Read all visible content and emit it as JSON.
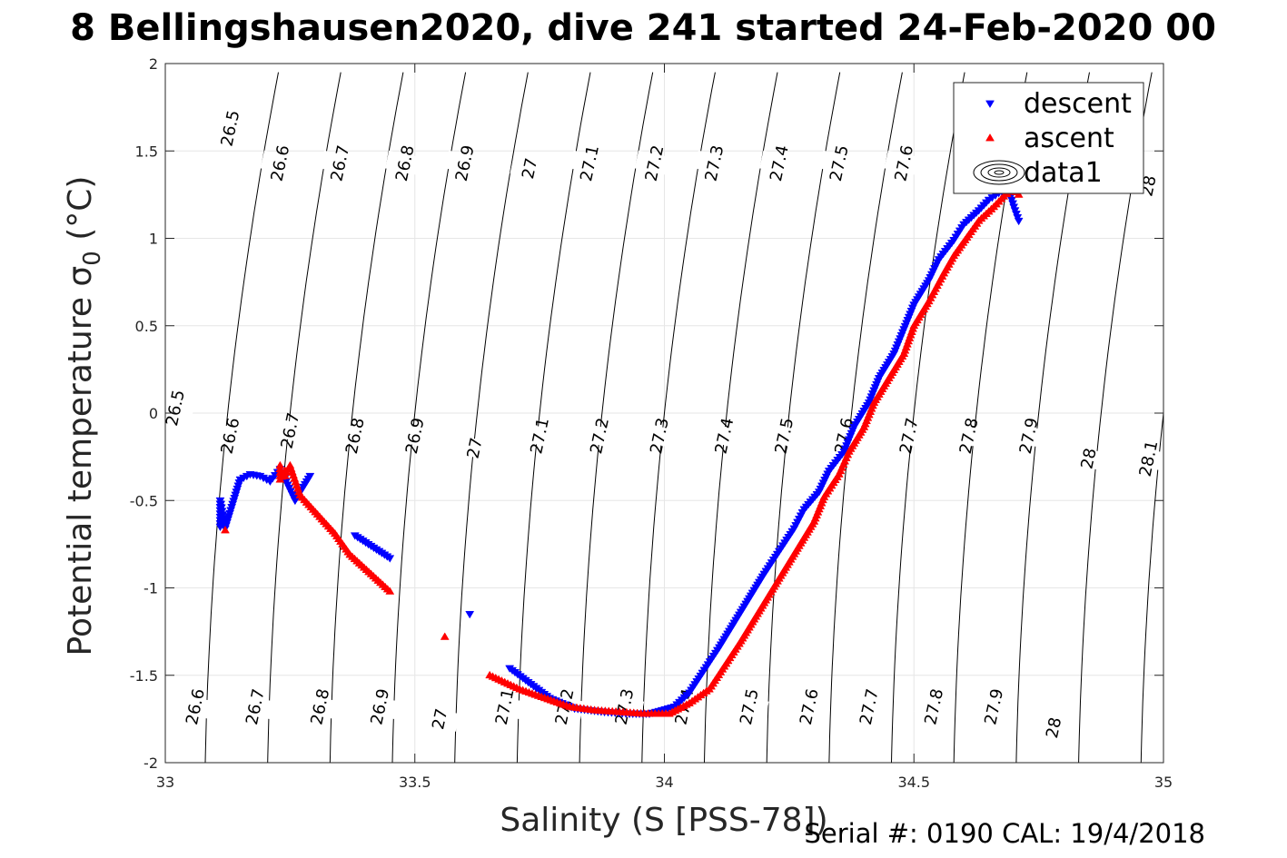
{
  "chart_data": {
    "type": "scatter",
    "title": "8 Bellingshausen2020, dive 241 started 24-Feb-2020 00",
    "xlabel": "Salinity (S [PSS-78])",
    "ylabel": "Potential temperature σ",
    "ylabel_subscript": "0",
    "ylabel_unit": " (°C)",
    "xlim": [
      33,
      35
    ],
    "ylim": [
      -2,
      2
    ],
    "xticks": [
      {
        "value": 33,
        "label": "33"
      },
      {
        "value": 33.5,
        "label": "33.5"
      },
      {
        "value": 34,
        "label": "34"
      },
      {
        "value": 34.5,
        "label": "34.5"
      },
      {
        "value": 35,
        "label": "35"
      }
    ],
    "yticks": [
      {
        "value": -2,
        "label": "-2"
      },
      {
        "value": -1.5,
        "label": "-1.5"
      },
      {
        "value": -1,
        "label": "-1"
      },
      {
        "value": -0.5,
        "label": "-0.5"
      },
      {
        "value": 0,
        "label": "0"
      },
      {
        "value": 0.5,
        "label": "0.5"
      },
      {
        "value": 1,
        "label": "1"
      },
      {
        "value": 1.5,
        "label": "1.5"
      },
      {
        "value": 2,
        "label": "2"
      }
    ],
    "grid": true,
    "legend": {
      "position": "top-right",
      "entries": [
        {
          "label": "descent",
          "marker": "triangle-down",
          "color": "#0000ff"
        },
        {
          "label": "ascent",
          "marker": "triangle-up",
          "color": "#ff0000"
        },
        {
          "label": "data1",
          "marker": "contour"
        }
      ]
    },
    "contours": {
      "type": "isopycnals",
      "levels": [
        26.5,
        26.6,
        26.7,
        26.8,
        26.9,
        27,
        27.1,
        27.2,
        27.3,
        27.4,
        27.5,
        27.6,
        27.7,
        27.8,
        27.9,
        28,
        28.1
      ],
      "labels": [
        {
          "text": "26.5",
          "s": 33.13,
          "t": 1.63
        },
        {
          "text": "26.6",
          "s": 33.23,
          "t": 1.43
        },
        {
          "text": "26.7",
          "s": 33.35,
          "t": 1.43
        },
        {
          "text": "26.8",
          "s": 33.48,
          "t": 1.43
        },
        {
          "text": "26.9",
          "s": 33.6,
          "t": 1.43
        },
        {
          "text": "27",
          "s": 33.73,
          "t": 1.4
        },
        {
          "text": "27.1",
          "s": 33.85,
          "t": 1.43
        },
        {
          "text": "27.2",
          "s": 33.98,
          "t": 1.43
        },
        {
          "text": "27.3",
          "s": 34.1,
          "t": 1.43
        },
        {
          "text": "27.4",
          "s": 34.23,
          "t": 1.43
        },
        {
          "text": "27.5",
          "s": 34.35,
          "t": 1.43
        },
        {
          "text": "27.6",
          "s": 34.48,
          "t": 1.43
        },
        {
          "text": "28",
          "s": 34.97,
          "t": 1.3
        },
        {
          "text": "26.5",
          "s": 33.02,
          "t": 0.03
        },
        {
          "text": "26.6",
          "s": 33.13,
          "t": -0.13
        },
        {
          "text": "26.7",
          "s": 33.25,
          "t": -0.1
        },
        {
          "text": "26.8",
          "s": 33.38,
          "t": -0.13
        },
        {
          "text": "26.9",
          "s": 33.5,
          "t": -0.13
        },
        {
          "text": "27",
          "s": 33.62,
          "t": -0.2
        },
        {
          "text": "27.1",
          "s": 33.75,
          "t": -0.13
        },
        {
          "text": "27.2",
          "s": 33.87,
          "t": -0.13
        },
        {
          "text": "27.3",
          "s": 33.99,
          "t": -0.13
        },
        {
          "text": "27.4",
          "s": 34.12,
          "t": -0.13
        },
        {
          "text": "27.5",
          "s": 34.24,
          "t": -0.13
        },
        {
          "text": "27.6",
          "s": 34.36,
          "t": -0.13
        },
        {
          "text": "27.7",
          "s": 34.49,
          "t": -0.13
        },
        {
          "text": "27.8",
          "s": 34.61,
          "t": -0.13
        },
        {
          "text": "27.9",
          "s": 34.73,
          "t": -0.13
        },
        {
          "text": "28",
          "s": 34.85,
          "t": -0.26
        },
        {
          "text": "28.1",
          "s": 34.97,
          "t": -0.26
        },
        {
          "text": "26.6",
          "s": 33.06,
          "t": -1.68
        },
        {
          "text": "26.7",
          "s": 33.18,
          "t": -1.68
        },
        {
          "text": "26.8",
          "s": 33.31,
          "t": -1.68
        },
        {
          "text": "26.9",
          "s": 33.43,
          "t": -1.68
        },
        {
          "text": "27",
          "s": 33.55,
          "t": -1.75
        },
        {
          "text": "27.1",
          "s": 33.68,
          "t": -1.68
        },
        {
          "text": "27.2",
          "s": 33.8,
          "t": -1.68
        },
        {
          "text": "27.3",
          "s": 33.92,
          "t": -1.68
        },
        {
          "text": "27.4",
          "s": 34.04,
          "t": -1.68
        },
        {
          "text": "27.5",
          "s": 34.17,
          "t": -1.68
        },
        {
          "text": "27.6",
          "s": 34.29,
          "t": -1.68
        },
        {
          "text": "27.7",
          "s": 34.41,
          "t": -1.68
        },
        {
          "text": "27.8",
          "s": 34.54,
          "t": -1.68
        },
        {
          "text": "27.9",
          "s": 34.66,
          "t": -1.68
        },
        {
          "text": "28",
          "s": 34.78,
          "t": -1.8
        }
      ]
    },
    "series": [
      {
        "name": "descent",
        "marker": "triangle-down",
        "color": "#0000ff",
        "x": [
          33.11,
          33.11,
          33.12,
          33.15,
          33.17,
          33.19,
          33.21,
          33.23,
          33.26,
          33.29,
          33.38,
          33.45,
          33.61,
          33.69,
          33.77,
          33.82,
          33.88,
          33.93,
          33.97,
          34.02,
          34.05,
          34.08,
          34.11,
          34.14,
          34.17,
          34.2,
          34.23,
          34.26,
          34.28,
          34.31,
          34.33,
          34.36,
          34.38,
          34.41,
          34.43,
          34.46,
          34.48,
          34.5,
          34.53,
          34.55,
          34.58,
          34.6,
          34.63,
          34.65,
          34.67,
          34.69,
          34.7,
          34.71
        ],
        "y": [
          -0.65,
          -0.5,
          -0.66,
          -0.38,
          -0.35,
          -0.36,
          -0.39,
          -0.32,
          -0.5,
          -0.36,
          -0.7,
          -0.83,
          -1.15,
          -1.46,
          -1.63,
          -1.69,
          -1.71,
          -1.72,
          -1.72,
          -1.68,
          -1.6,
          -1.47,
          -1.34,
          -1.2,
          -1.06,
          -0.92,
          -0.79,
          -0.66,
          -0.55,
          -0.45,
          -0.33,
          -0.22,
          -0.08,
          0.06,
          0.2,
          0.34,
          0.48,
          0.62,
          0.76,
          0.88,
          0.99,
          1.08,
          1.16,
          1.22,
          1.26,
          1.28,
          1.18,
          1.1
        ]
      },
      {
        "name": "ascent",
        "marker": "triangle-up",
        "color": "#ff0000",
        "x": [
          33.12,
          33.23,
          33.23,
          33.24,
          33.24,
          33.25,
          33.27,
          33.34,
          33.37,
          33.45,
          33.56,
          33.65,
          33.71,
          33.76,
          33.81,
          33.86,
          33.91,
          33.96,
          34.01,
          34.05,
          34.09,
          34.12,
          34.15,
          34.18,
          34.21,
          34.24,
          34.27,
          34.3,
          34.32,
          34.35,
          34.37,
          34.4,
          34.42,
          34.45,
          34.48,
          34.5,
          34.53,
          34.56,
          34.58,
          34.61,
          34.63,
          34.66,
          34.68,
          34.7,
          34.71
        ],
        "y": [
          -0.67,
          -0.3,
          -0.38,
          -0.33,
          -0.36,
          -0.3,
          -0.47,
          -0.69,
          -0.81,
          -1.02,
          -1.28,
          -1.5,
          -1.58,
          -1.63,
          -1.68,
          -1.7,
          -1.71,
          -1.72,
          -1.72,
          -1.66,
          -1.58,
          -1.45,
          -1.32,
          -1.18,
          -1.04,
          -0.9,
          -0.76,
          -0.62,
          -0.48,
          -0.35,
          -0.22,
          -0.08,
          0.06,
          0.2,
          0.34,
          0.5,
          0.64,
          0.8,
          0.9,
          1.02,
          1.1,
          1.18,
          1.24,
          1.28,
          1.25
        ]
      }
    ]
  },
  "footer": {
    "serial": "Serial #: 0190  CAL: 19/4/2018"
  }
}
